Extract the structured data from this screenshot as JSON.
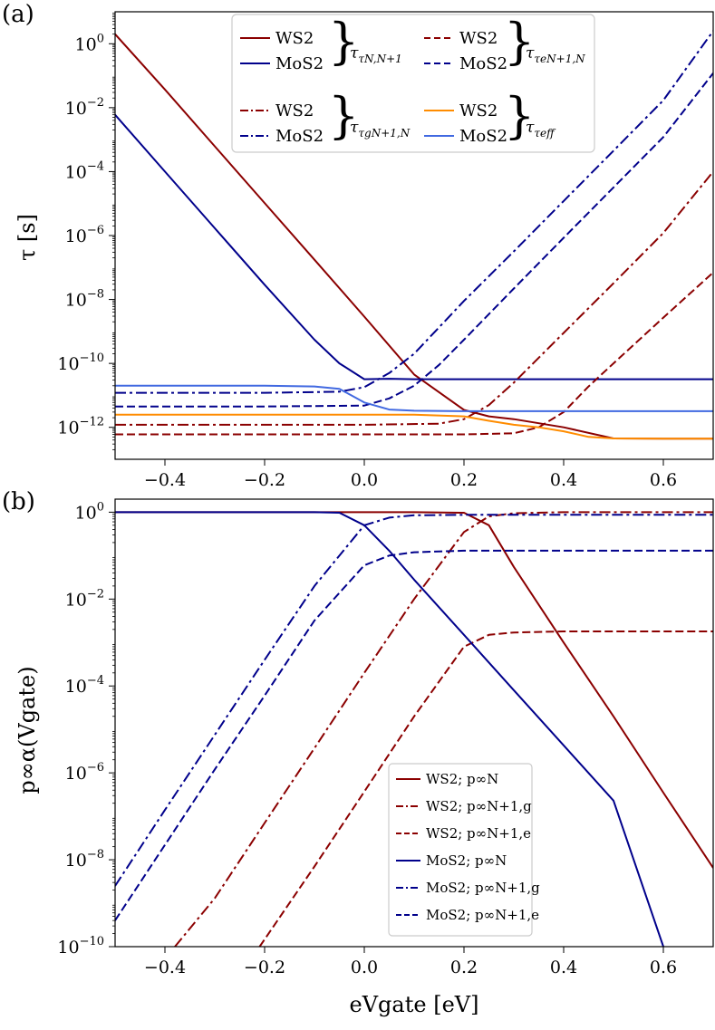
{
  "panel_a": {
    "letter": "(a)",
    "ylabel": "τ [s]",
    "xticks": [
      "−0.4",
      "−0.2",
      "0.0",
      "0.2",
      "0.4",
      "0.6"
    ],
    "yticks": [
      {
        "base": "10",
        "exp": "0"
      },
      {
        "base": "10",
        "exp": "−2"
      },
      {
        "base": "10",
        "exp": "−4"
      },
      {
        "base": "10",
        "exp": "−6"
      },
      {
        "base": "10",
        "exp": "−8"
      },
      {
        "base": "10",
        "exp": "−10"
      },
      {
        "base": "10",
        "exp": "−12"
      }
    ],
    "legend": {
      "groups": [
        "τN,N+1",
        "τeN+1,N",
        "τgN+1,N",
        "τeff"
      ],
      "ws2": "WS2",
      "mos2": "MoS2"
    }
  },
  "panel_b": {
    "letter": "(b)",
    "ylabel": "p∞α(Vgate)",
    "xlabel": "eVgate [eV]",
    "xticks": [
      "−0.4",
      "−0.2",
      "0.0",
      "0.2",
      "0.4",
      "0.6"
    ],
    "yticks": [
      {
        "base": "10",
        "exp": "0"
      },
      {
        "base": "10",
        "exp": "−2"
      },
      {
        "base": "10",
        "exp": "−4"
      },
      {
        "base": "10",
        "exp": "−6"
      },
      {
        "base": "10",
        "exp": "−8"
      },
      {
        "base": "10",
        "exp": "−10"
      }
    ],
    "legend": [
      {
        "text": "WS2; p∞N"
      },
      {
        "text": "WS2; p∞N+1,g"
      },
      {
        "text": "WS2; p∞N+1,e"
      },
      {
        "text": "MoS2; p∞N"
      },
      {
        "text": "MoS2; p∞N+1,g"
      },
      {
        "text": "MoS2; p∞N+1,e"
      }
    ]
  },
  "colors": {
    "ws2": "#8b0000",
    "mos2": "#00008b",
    "ws2_eff": "#ff8c00",
    "mos2_eff": "#4169e1",
    "legend_border": "#cccccc"
  },
  "chart_data": [
    {
      "type": "line",
      "title": "(a)",
      "xlabel": "",
      "ylabel": "τ [s]",
      "xlim": [
        -0.5,
        0.7
      ],
      "ylim": [
        1e-13,
        10
      ],
      "yscale": "log",
      "legend": "top-center",
      "series": [
        {
          "name": "WS2 τN,N+1",
          "color": "#8b0000",
          "dash": "solid",
          "x": [
            -0.5,
            -0.4,
            -0.3,
            -0.2,
            -0.1,
            0.0,
            0.1,
            0.2,
            0.25,
            0.3,
            0.4,
            0.5,
            0.6,
            0.7
          ],
          "y": [
            2.0,
            0.037,
            0.00062,
            1.04e-05,
            1.75e-07,
            2.9e-09,
            4.5e-11,
            3.5e-12,
            2.2e-12,
            1.8e-12,
            1e-12,
            4.5e-13,
            4.4e-13,
            4.4e-13
          ]
        },
        {
          "name": "MoS2 τN,N+1",
          "color": "#00008b",
          "dash": "solid",
          "x": [
            -0.5,
            -0.4,
            -0.3,
            -0.2,
            -0.1,
            -0.05,
            0.0,
            0.05,
            0.1,
            0.2,
            0.3,
            0.4,
            0.5,
            0.6,
            0.7
          ],
          "y": [
            0.006,
            0.0001,
            1.7e-06,
            2.9e-08,
            5.5e-10,
            1e-10,
            3.2e-11,
            3.3e-11,
            3.2e-11,
            3.2e-11,
            3.2e-11,
            3.2e-11,
            3.2e-11,
            3.2e-11,
            3.2e-11
          ]
        },
        {
          "name": "WS2 τeN+1,N",
          "color": "#8b0000",
          "dash": "dashed",
          "x": [
            -0.5,
            -0.2,
            0.0,
            0.2,
            0.3,
            0.35,
            0.4,
            0.45,
            0.5,
            0.6,
            0.7
          ],
          "y": [
            6e-13,
            6e-13,
            6e-13,
            6e-13,
            6.5e-13,
            1e-12,
            3e-12,
            1.9e-11,
            1e-10,
            2.7e-09,
            7e-08
          ]
        },
        {
          "name": "MoS2 τeN+1,N",
          "color": "#00008b",
          "dash": "dashed",
          "x": [
            -0.5,
            -0.2,
            0.0,
            0.05,
            0.1,
            0.15,
            0.2,
            0.3,
            0.4,
            0.5,
            0.6,
            0.7
          ],
          "y": [
            4.5e-12,
            4.5e-12,
            4.8e-12,
            8e-12,
            2e-11,
            9e-11,
            5.5e-10,
            2.2e-08,
            8.5e-07,
            3.2e-05,
            0.0012,
            0.12
          ]
        },
        {
          "name": "WS2 τgN+1,N",
          "color": "#8b0000",
          "dash": "dashdot",
          "x": [
            -0.5,
            -0.2,
            0.0,
            0.15,
            0.2,
            0.25,
            0.3,
            0.4,
            0.5,
            0.6,
            0.7
          ],
          "y": [
            1.2e-12,
            1.2e-12,
            1.2e-12,
            1.3e-12,
            1.8e-12,
            5e-12,
            2.5e-11,
            9e-10,
            3.2e-08,
            1.2e-06,
            0.0001
          ]
        },
        {
          "name": "MoS2 τgN+1,N",
          "color": "#00008b",
          "dash": "dashdot",
          "x": [
            -0.5,
            -0.2,
            -0.05,
            0.0,
            0.05,
            0.1,
            0.2,
            0.3,
            0.4,
            0.5,
            0.6,
            0.7
          ],
          "y": [
            1.2e-11,
            1.2e-11,
            1.3e-11,
            1.8e-11,
            5e-11,
            2e-10,
            9e-09,
            3.2e-07,
            1.2e-05,
            0.00045,
            0.017,
            2.5
          ]
        },
        {
          "name": "WS2 τeff",
          "color": "#ff8c00",
          "dash": "solid",
          "x": [
            -0.5,
            -0.2,
            0.0,
            0.1,
            0.2,
            0.25,
            0.3,
            0.35,
            0.4,
            0.45,
            0.5,
            0.6,
            0.7
          ],
          "y": [
            2.5e-12,
            2.5e-12,
            2.5e-12,
            2.5e-12,
            2.2e-12,
            1.6e-12,
            1.2e-12,
            1e-12,
            7.5e-13,
            5e-13,
            4.5e-13,
            4.4e-13,
            4.4e-13
          ]
        },
        {
          "name": "MoS2 τeff",
          "color": "#4169e1",
          "dash": "solid",
          "x": [
            -0.5,
            -0.2,
            -0.1,
            -0.05,
            0.0,
            0.05,
            0.1,
            0.2,
            0.3,
            0.4,
            0.5,
            0.6,
            0.7
          ],
          "y": [
            2e-11,
            2e-11,
            1.9e-11,
            1.6e-11,
            6e-12,
            3.6e-12,
            3.3e-12,
            3.2e-12,
            3.2e-12,
            3.2e-12,
            3.2e-12,
            3.2e-12,
            3.2e-12
          ]
        }
      ]
    },
    {
      "type": "line",
      "title": "(b)",
      "xlabel": "eVgate [eV]",
      "ylabel": "p∞α(Vgate)",
      "xlim": [
        -0.5,
        0.7
      ],
      "ylim": [
        1e-10,
        2
      ],
      "yscale": "log",
      "legend": "lower-right",
      "series": [
        {
          "name": "WS2; p∞N",
          "color": "#8b0000",
          "dash": "solid",
          "x": [
            -0.5,
            -0.2,
            0.0,
            0.1,
            0.2,
            0.25,
            0.3,
            0.4,
            0.5,
            0.6,
            0.7
          ],
          "y": [
            1.0,
            1.0,
            1.0,
            1.0,
            0.97,
            0.5,
            0.055,
            0.001,
            2e-05,
            3.5e-07,
            6.5e-09
          ]
        },
        {
          "name": "WS2; p∞N+1,g",
          "color": "#8b0000",
          "dash": "dashdot",
          "x": [
            -0.38,
            -0.3,
            -0.2,
            -0.1,
            0.0,
            0.1,
            0.2,
            0.25,
            0.3,
            0.4,
            0.5,
            0.7
          ],
          "y": [
            1e-10,
            1.3e-09,
            7e-08,
            3.7e-06,
            0.0002,
            0.01,
            0.35,
            0.8,
            0.95,
            1.0,
            1.0,
            1.0
          ]
        },
        {
          "name": "WS2; p∞N+1,e",
          "color": "#8b0000",
          "dash": "dashed",
          "x": [
            -0.21,
            -0.1,
            0.0,
            0.1,
            0.2,
            0.25,
            0.3,
            0.4,
            0.5,
            0.7
          ],
          "y": [
            1e-10,
            7e-09,
            3.7e-07,
            2e-05,
            0.0008,
            0.0015,
            0.0017,
            0.0018,
            0.0018,
            0.0018
          ]
        },
        {
          "name": "MoS2; p∞N",
          "color": "#00008b",
          "dash": "solid",
          "x": [
            -0.5,
            -0.2,
            -0.1,
            -0.05,
            0.0,
            0.05,
            0.1,
            0.2,
            0.3,
            0.4,
            0.5,
            0.6
          ],
          "y": [
            1.0,
            1.0,
            1.0,
            0.97,
            0.5,
            0.13,
            0.028,
            0.0015,
            8e-05,
            4.3e-06,
            2.3e-07,
            1e-10
          ]
        },
        {
          "name": "MoS2; p∞N+1,g",
          "color": "#00008b",
          "dash": "dashdot",
          "x": [
            -0.5,
            -0.4,
            -0.3,
            -0.2,
            -0.1,
            0.0,
            0.05,
            0.1,
            0.2,
            0.4,
            0.7
          ],
          "y": [
            2.5e-09,
            1.4e-07,
            7.5e-06,
            0.0004,
            0.02,
            0.5,
            0.75,
            0.85,
            0.87,
            0.87,
            0.87
          ]
        },
        {
          "name": "MoS2; p∞N+1,e",
          "color": "#00008b",
          "dash": "dashed",
          "x": [
            -0.5,
            -0.4,
            -0.3,
            -0.2,
            -0.1,
            0.0,
            0.05,
            0.1,
            0.2,
            0.4,
            0.7
          ],
          "y": [
            4e-10,
            2.2e-08,
            1.2e-06,
            6e-05,
            0.0032,
            0.06,
            0.1,
            0.12,
            0.13,
            0.13,
            0.13
          ]
        }
      ]
    }
  ]
}
